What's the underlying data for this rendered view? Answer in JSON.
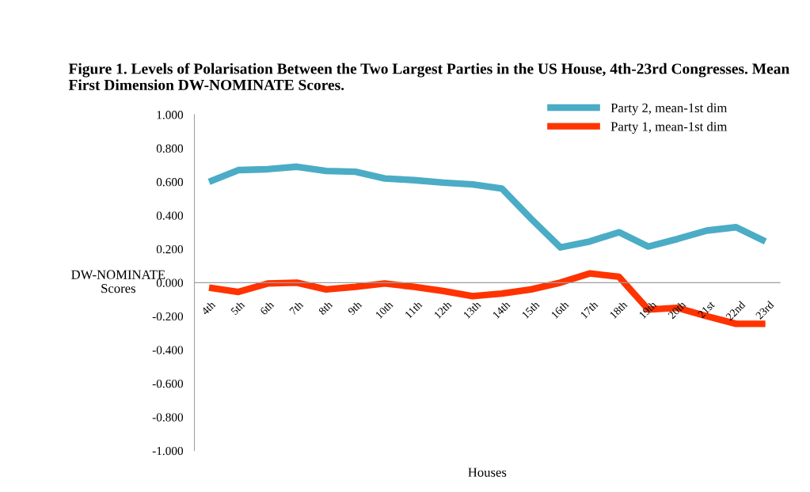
{
  "chart_data": {
    "type": "line",
    "title": "Figure 1. Levels of Polarisation Between the Two Largest Parties in the US House, 4th-23rd Congresses. Mean First Dimension DW-NOMINATE Scores.",
    "xlabel": "Houses",
    "ylabel": "DW-NOMINATE\nScores",
    "categories": [
      "4th",
      "5th",
      "6th",
      "7th",
      "8th",
      "9th",
      "10th",
      "11th",
      "12th",
      "13th",
      "14th",
      "15th",
      "16th",
      "17th",
      "18th",
      "19th",
      "20th",
      "21st",
      "22nd",
      "23rd"
    ],
    "series": [
      {
        "name": "Party 2, mean-1st dim",
        "color": "#4bacc6",
        "values": [
          0.6,
          0.67,
          0.675,
          0.69,
          0.665,
          0.66,
          0.62,
          0.61,
          0.595,
          0.585,
          0.56,
          0.38,
          0.21,
          0.245,
          0.3,
          0.215,
          0.26,
          0.31,
          0.33,
          0.245
        ]
      },
      {
        "name": "Party 1, mean-1st dim",
        "color": "#ff3300",
        "values": [
          -0.03,
          -0.055,
          -0.005,
          0.0,
          -0.04,
          -0.025,
          -0.005,
          -0.025,
          -0.05,
          -0.08,
          -0.065,
          -0.04,
          0.0,
          0.055,
          0.035,
          -0.16,
          -0.15,
          -0.2,
          -0.245,
          -0.245
        ]
      }
    ],
    "ylim": [
      -1.0,
      1.0
    ],
    "yticks": [
      {
        "value": -1.0,
        "label": "-1.000"
      },
      {
        "value": -0.8,
        "label": "-0.800"
      },
      {
        "value": -0.6,
        "label": "-0.600"
      },
      {
        "value": -0.4,
        "label": "-0.400"
      },
      {
        "value": -0.2,
        "label": "-0.200"
      },
      {
        "value": 0.0,
        "label": "0.000"
      },
      {
        "value": 0.2,
        "label": "0.200"
      },
      {
        "value": 0.4,
        "label": "0.400"
      },
      {
        "value": 0.6,
        "label": "0.600"
      },
      {
        "value": 0.8,
        "label": "0.800"
      },
      {
        "value": 1.0,
        "label": "1.000"
      }
    ],
    "grid": false,
    "legend": "top right",
    "marker": "none",
    "line_style": "solid"
  }
}
